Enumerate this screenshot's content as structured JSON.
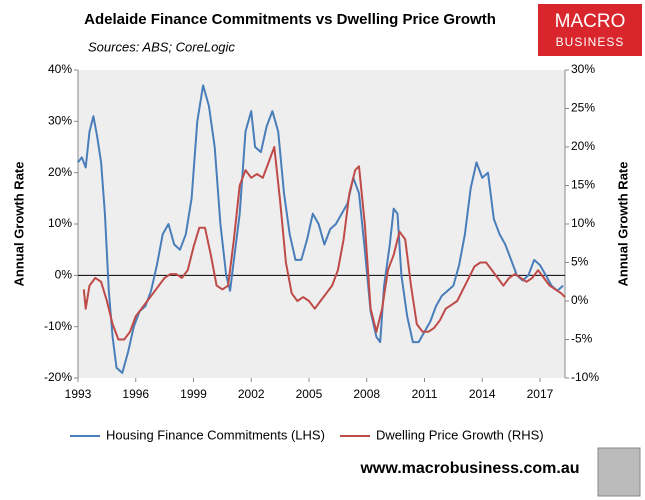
{
  "chart_data": {
    "type": "line",
    "title": "Adelaide Finance Commitments vs Dwelling Price Growth",
    "subtitle": "Sources: ABS; CoreLogic",
    "ylabel": "Annual Growth Rate",
    "y2label": "Annual Growth Rate",
    "logo": [
      "MACRO",
      "BUSINESS"
    ],
    "footer": "www.macrobusiness.com.au",
    "xlim": [
      1993,
      2018.3
    ],
    "xticks": [
      1993,
      1996,
      1999,
      2002,
      2005,
      2008,
      2011,
      2014,
      2017
    ],
    "ylim": [
      -20,
      40
    ],
    "yticks": [
      {
        "value": -20,
        "label": "-20%"
      },
      {
        "value": -10,
        "label": "-10%"
      },
      {
        "value": 0,
        "label": "0%"
      },
      {
        "value": 10,
        "label": "10%"
      },
      {
        "value": 20,
        "label": "20%"
      },
      {
        "value": 30,
        "label": "30%"
      },
      {
        "value": 40,
        "label": "40%"
      }
    ],
    "y2lim": [
      -10,
      30
    ],
    "y2ticks": [
      {
        "value": -10,
        "label": "-10%"
      },
      {
        "value": -5,
        "label": "-5%"
      },
      {
        "value": 0,
        "label": "0%"
      },
      {
        "value": 5,
        "label": "5%"
      },
      {
        "value": 10,
        "label": "10%"
      },
      {
        "value": 15,
        "label": "15%"
      },
      {
        "value": 20,
        "label": "20%"
      },
      {
        "value": 25,
        "label": "25%"
      },
      {
        "value": 30,
        "label": "30%"
      }
    ],
    "series": [
      {
        "name": "Housing Finance Commitments (LHS)",
        "color": "#4a7ebb",
        "axis": "y",
        "x": [
          1993.0,
          1993.2,
          1993.4,
          1993.6,
          1993.8,
          1994.0,
          1994.2,
          1994.4,
          1994.6,
          1994.8,
          1995.0,
          1995.3,
          1995.6,
          1995.9,
          1996.2,
          1996.5,
          1996.8,
          1997.1,
          1997.4,
          1997.7,
          1998.0,
          1998.3,
          1998.6,
          1998.9,
          1999.2,
          1999.5,
          1999.8,
          2000.1,
          2000.4,
          2000.7,
          2000.9,
          2001.1,
          2001.4,
          2001.7,
          2002.0,
          2002.2,
          2002.5,
          2002.8,
          2003.1,
          2003.4,
          2003.7,
          2004.0,
          2004.3,
          2004.6,
          2004.9,
          2005.2,
          2005.5,
          2005.8,
          2006.1,
          2006.4,
          2006.7,
          2007.0,
          2007.3,
          2007.6,
          2007.9,
          2008.2,
          2008.5,
          2008.7,
          2008.9,
          2009.2,
          2009.4,
          2009.6,
          2009.8,
          2010.1,
          2010.4,
          2010.7,
          2011.0,
          2011.3,
          2011.6,
          2011.9,
          2012.2,
          2012.5,
          2012.8,
          2013.1,
          2013.4,
          2013.7,
          2014.0,
          2014.3,
          2014.6,
          2014.9,
          2015.2,
          2015.5,
          2015.8,
          2016.1,
          2016.4,
          2016.7,
          2017.0,
          2017.3,
          2017.6,
          2017.9,
          2018.2
        ],
        "values": [
          22,
          23,
          21,
          28,
          31,
          27,
          22,
          12,
          -3,
          -12,
          -18,
          -19,
          -15,
          -10,
          -7,
          -6,
          -3,
          2,
          8,
          10,
          6,
          5,
          8,
          15,
          30,
          37,
          33,
          25,
          10,
          0,
          -3,
          3,
          12,
          28,
          32,
          25,
          24,
          29,
          32,
          28,
          16,
          8,
          3,
          3,
          7,
          12,
          10,
          6,
          9,
          10,
          12,
          14,
          19,
          16,
          5,
          -7,
          -12,
          -13,
          -2,
          6,
          13,
          12,
          0,
          -8,
          -13,
          -13,
          -11,
          -9,
          -6,
          -4,
          -3,
          -2,
          2,
          8,
          17,
          22,
          19,
          20,
          11,
          8,
          6,
          3,
          0,
          -1,
          0,
          3,
          2,
          0,
          -2,
          -3,
          -2
        ]
      },
      {
        "name": "Dwelling Price Growth (RHS)",
        "color": "#be4b48",
        "axis": "y2",
        "x": [
          1993.3,
          1993.4,
          1993.6,
          1993.9,
          1994.2,
          1994.5,
          1994.8,
          1995.1,
          1995.4,
          1995.7,
          1996.0,
          1996.3,
          1996.6,
          1996.9,
          1997.2,
          1997.5,
          1997.8,
          1998.1,
          1998.4,
          1998.7,
          1999.0,
          1999.3,
          1999.6,
          1999.9,
          2000.2,
          2000.5,
          2000.8,
          2001.1,
          2001.4,
          2001.7,
          2002.0,
          2002.3,
          2002.6,
          2002.9,
          2003.2,
          2003.5,
          2003.8,
          2004.1,
          2004.4,
          2004.7,
          2005.0,
          2005.3,
          2005.6,
          2005.9,
          2006.2,
          2006.5,
          2006.8,
          2007.1,
          2007.4,
          2007.6,
          2007.9,
          2008.2,
          2008.5,
          2008.8,
          2009.1,
          2009.4,
          2009.7,
          2010.0,
          2010.3,
          2010.6,
          2010.9,
          2011.2,
          2011.5,
          2011.8,
          2012.1,
          2012.4,
          2012.7,
          2013.0,
          2013.3,
          2013.6,
          2013.9,
          2014.2,
          2014.5,
          2014.8,
          2015.1,
          2015.4,
          2015.7,
          2016.0,
          2016.3,
          2016.6,
          2016.9,
          2017.2,
          2017.5,
          2017.8,
          2018.1,
          2018.3
        ],
        "values": [
          1.5,
          -1,
          2,
          3,
          2.5,
          0,
          -3,
          -5,
          -5,
          -4,
          -2,
          -1,
          0,
          1,
          2,
          3,
          3.5,
          3.5,
          3,
          4,
          7,
          9.5,
          9.5,
          6,
          2,
          1.5,
          2,
          8,
          15,
          17,
          16,
          16.5,
          16,
          18,
          20,
          13,
          5,
          1,
          0,
          0.5,
          0,
          -1,
          0,
          1,
          2,
          4,
          8,
          14,
          17,
          17.5,
          10,
          -1,
          -4,
          -1,
          4,
          6,
          9,
          8,
          2,
          -3,
          -4,
          -4,
          -3.5,
          -2.5,
          -1,
          -0.5,
          0,
          1.5,
          3,
          4.5,
          5,
          5,
          4,
          3,
          2,
          3,
          3.5,
          3,
          2.5,
          3,
          4,
          3,
          2,
          1.5,
          1,
          0.5
        ]
      }
    ]
  }
}
